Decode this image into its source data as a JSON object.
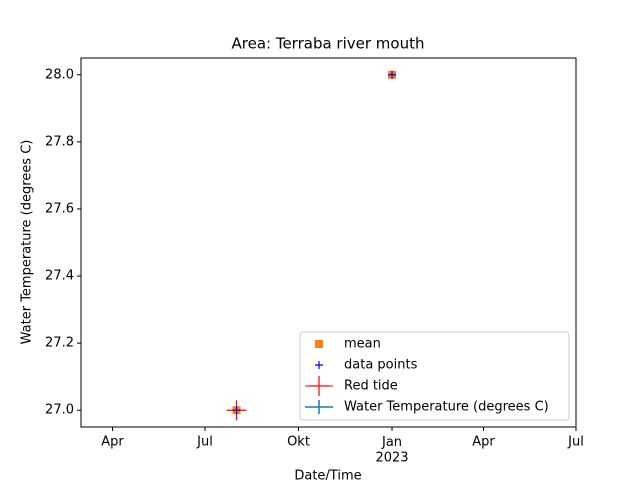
{
  "chart_data": {
    "type": "scatter",
    "title": "Area: Terraba river mouth",
    "xlabel": "Date/Time",
    "ylabel": "Water Temperature (degrees C)",
    "xlim": [
      "2022-03",
      "2023-07"
    ],
    "xticks": [
      {
        "value": "2022-04",
        "label": "Apr"
      },
      {
        "value": "2022-07",
        "label": "Jul"
      },
      {
        "value": "2022-10",
        "label": "Okt"
      },
      {
        "value": "2023-01",
        "label": "Jan\n2023"
      },
      {
        "value": "2023-04",
        "label": "Apr"
      },
      {
        "value": "2023-07",
        "label": "Jul"
      }
    ],
    "ylim": [
      26.95,
      28.05
    ],
    "yticks": [
      {
        "value": 27.0,
        "label": "27.0"
      },
      27.2,
      27.4,
      27.6,
      27.8,
      {
        "value": 28.0,
        "label": "28.0"
      }
    ],
    "legend": "lower right",
    "series": [
      {
        "name": "mean",
        "color": "#ff7f0e",
        "marker": "square",
        "x": [
          "2022-08",
          "2023-01"
        ],
        "values": [
          27.0,
          28.0
        ]
      },
      {
        "name": "data points",
        "color": "#0000ff",
        "marker": "plus",
        "x": [
          "2022-08",
          "2023-01"
        ],
        "values": [
          27.0,
          28.0
        ]
      },
      {
        "name": "Red tide",
        "color": "#ff0000",
        "marker": "plus-large",
        "x": [
          "2022-08"
        ],
        "values": [
          27.0
        ]
      },
      {
        "name": "Water Temperature (degrees C)",
        "color": "#1f77b4",
        "marker": "errorbar",
        "x": [
          "2022-08",
          "2023-01"
        ],
        "values": [
          27.0,
          28.0
        ]
      }
    ]
  }
}
